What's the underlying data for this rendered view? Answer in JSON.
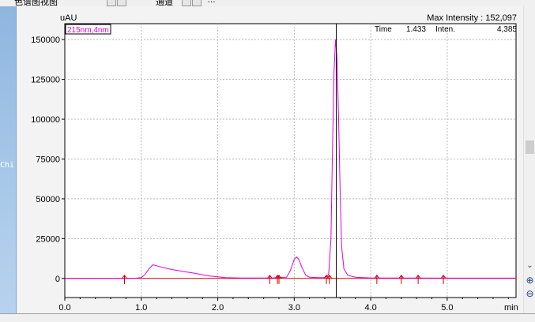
{
  "header": {
    "tab_label": "色谱图视图",
    "channel_label": "通道",
    "extra": "…"
  },
  "left_panel": {
    "label": "Chi"
  },
  "chart_info": {
    "y_unit": "uAU",
    "x_unit": "min",
    "max_intensity_text": "Max Intensity : 152,097",
    "channel_legend": "215nm,4nm",
    "time_label": "Time",
    "time_value": "1.433",
    "inten_label": "Inten.",
    "inten_value": "4,385"
  },
  "colors": {
    "signal": "#e000e0",
    "baseline": "#cc0000",
    "cursor": "#000000",
    "grid": "#b9b9b9"
  },
  "chart_data": {
    "type": "line",
    "title": "",
    "xlabel": "min",
    "ylabel": "uAU",
    "xlim": [
      0.0,
      5.9
    ],
    "ylim": [
      -12000,
      160000
    ],
    "x_ticks": [
      "0.0",
      "1.0",
      "2.0",
      "3.0",
      "4.0",
      "5.0"
    ],
    "y_ticks": [
      "0",
      "25000",
      "50000",
      "75000",
      "100000",
      "125000",
      "150000"
    ],
    "grid": true,
    "cursor_x": 3.55,
    "series": [
      {
        "name": "215nm,4nm",
        "x": [
          0.0,
          0.9,
          1.0,
          1.05,
          1.1,
          1.15,
          1.2,
          1.3,
          1.4,
          1.5,
          1.6,
          1.7,
          1.8,
          1.9,
          2.0,
          2.1,
          2.3,
          2.5,
          2.7,
          2.9,
          2.95,
          3.0,
          3.03,
          3.06,
          3.1,
          3.15,
          3.2,
          3.3,
          3.4,
          3.45,
          3.48,
          3.5,
          3.52,
          3.54,
          3.56,
          3.58,
          3.6,
          3.62,
          3.65,
          3.7,
          3.8,
          4.0,
          5.0,
          5.9
        ],
        "y": [
          0,
          0,
          500,
          2500,
          6000,
          8500,
          8000,
          6700,
          5600,
          4800,
          4000,
          3200,
          2300,
          1500,
          1000,
          500,
          300,
          300,
          300,
          800,
          5000,
          12000,
          13500,
          12000,
          7000,
          2000,
          800,
          500,
          600,
          2500,
          25000,
          80000,
          130000,
          150000,
          138000,
          100000,
          55000,
          20000,
          6000,
          2000,
          800,
          300,
          200,
          200
        ]
      }
    ],
    "baseline_markers_x": [
      0.78,
      2.68,
      2.78,
      2.8,
      3.42,
      3.46,
      4.08,
      4.4,
      4.62,
      4.95
    ]
  }
}
